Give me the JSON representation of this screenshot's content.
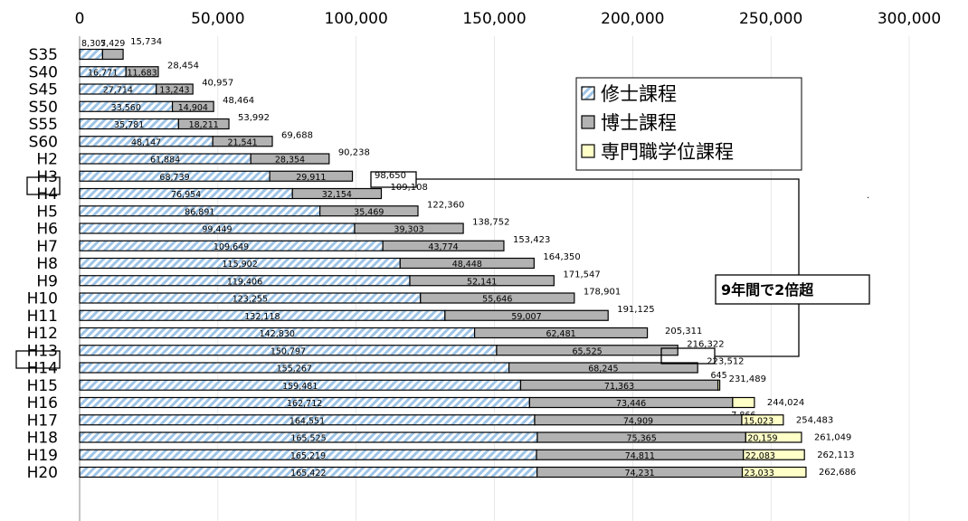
{
  "chart_data": {
    "type": "bar",
    "orientation": "horizontal",
    "stacked": true,
    "xlim": [
      0,
      300000
    ],
    "x_ticks": [
      "0",
      "50,000",
      "100,000",
      "150,000",
      "200,000",
      "250,000",
      "300,000"
    ],
    "legend_position": "top-right",
    "categories": [
      "S35",
      "S40",
      "S45",
      "S50",
      "S55",
      "S60",
      "H2",
      "H3",
      "H4",
      "H5",
      "H6",
      "H7",
      "H8",
      "H9",
      "H10",
      "H11",
      "H12",
      "H13",
      "H14",
      "H15",
      "H16",
      "H17",
      "H18",
      "H19",
      "H20"
    ],
    "highlighted_categories": [
      "H3",
      "H12"
    ],
    "series": [
      {
        "name": "修士課程",
        "color": "#9ec4e6",
        "values": [
          8305,
          16771,
          27714,
          33560,
          35781,
          48147,
          61884,
          68739,
          76954,
          86891,
          99449,
          109649,
          115902,
          119406,
          123255,
          132118,
          142830,
          150797,
          155267,
          159481,
          162712,
          164551,
          165525,
          165219,
          165422
        ],
        "labels": [
          "8,305",
          "16,771",
          "27,714",
          "33,560",
          "35,781",
          "48,147",
          "61,884",
          "68,739",
          "76,954",
          "86,891",
          "99,449",
          "109,649",
          "115,902",
          "119,406",
          "123,255",
          "132,118",
          "142,830",
          "150,797",
          "155,267",
          "159,481",
          "162,712",
          "164,551",
          "165,525",
          "165,219",
          "165,422"
        ]
      },
      {
        "name": "博士課程",
        "color": "#b2b2b2",
        "values": [
          7429,
          11683,
          13243,
          14904,
          18211,
          21541,
          28354,
          29911,
          32154,
          35469,
          39303,
          43774,
          48448,
          52141,
          55646,
          59007,
          62481,
          65525,
          68245,
          71363,
          73446,
          74909,
          75365,
          74811,
          74231
        ],
        "labels": [
          "7,429",
          "11,683",
          "13,243",
          "14,904",
          "18,211",
          "21,541",
          "28,354",
          "29,911",
          "32,154",
          "35,469",
          "39,303",
          "43,774",
          "48,448",
          "52,141",
          "55,646",
          "59,007",
          "62,481",
          "65,525",
          "68,245",
          "71,363",
          "73,446",
          "74,909",
          "75,365",
          "74,811",
          "74,231"
        ]
      },
      {
        "name": "専門職学位課程",
        "color": "#ffffc8",
        "values": [
          0,
          0,
          0,
          0,
          0,
          0,
          0,
          0,
          0,
          0,
          0,
          0,
          0,
          0,
          0,
          0,
          0,
          0,
          0,
          645,
          7866,
          15023,
          20159,
          22083,
          23033
        ],
        "labels": [
          "",
          "",
          "",
          "",
          "",
          "",
          "",
          "",
          "",
          "",
          "",
          "",
          "",
          "",
          "",
          "",
          "",
          "",
          "",
          "645",
          "7,866",
          "15,023",
          "20,159",
          "22,083",
          "23,033"
        ]
      }
    ],
    "totals": [
      "15,734",
      "28,454",
      "40,957",
      "48,464",
      "53,992",
      "69,688",
      "90,238",
      "98,650",
      "109,108",
      "122,360",
      "138,752",
      "153,423",
      "164,350",
      "171,547",
      "178,901",
      "191,125",
      "205,311",
      "216,322",
      "223,512",
      "231,489",
      "244,024",
      "254,483",
      "261,049",
      "262,113",
      "262,686"
    ],
    "annotation": "9年間で2倍超"
  }
}
